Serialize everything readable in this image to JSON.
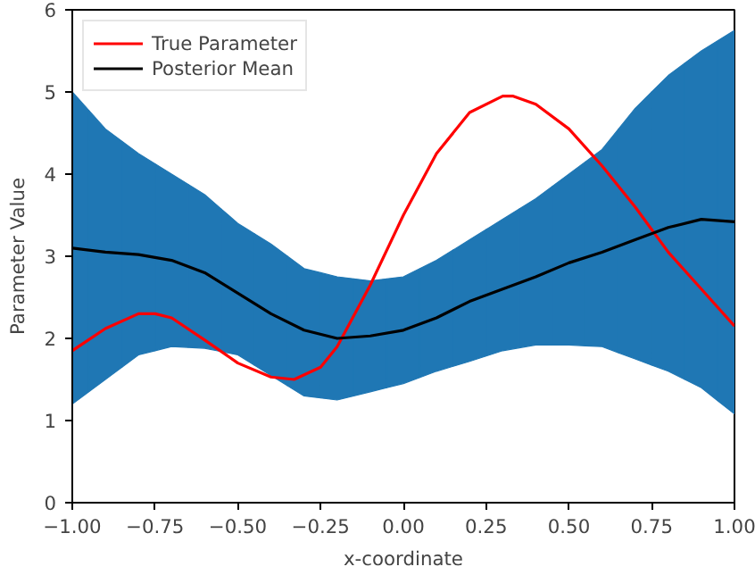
{
  "chart_data": {
    "type": "line",
    "xlabel": "x-coordinate",
    "ylabel": "Parameter Value",
    "xlim": [
      -1,
      1
    ],
    "ylim": [
      0,
      6
    ],
    "xticks": [
      {
        "value": -1,
        "label": "−1.00"
      },
      {
        "value": -0.75,
        "label": "−0.75"
      },
      {
        "value": -0.5,
        "label": "−0.50"
      },
      {
        "value": -0.25,
        "label": "−0.25"
      },
      {
        "value": 0,
        "label": "0.00"
      },
      {
        "value": 0.25,
        "label": "0.25"
      },
      {
        "value": 0.5,
        "label": "0.50"
      },
      {
        "value": 0.75,
        "label": "0.75"
      },
      {
        "value": 1,
        "label": "1.00"
      }
    ],
    "yticks": [
      0,
      1,
      2,
      3,
      4,
      5,
      6
    ],
    "grid": false,
    "legend": "top left",
    "line_style": "solid",
    "marker": "none",
    "series": [
      {
        "name": "True Parameter",
        "color": "#ff0000",
        "x": [
          -1,
          -0.9,
          -0.8,
          -0.75,
          -0.7,
          -0.6,
          -0.5,
          -0.4,
          -0.33,
          -0.25,
          -0.2,
          -0.1,
          0,
          0.1,
          0.2,
          0.3,
          0.33,
          0.4,
          0.5,
          0.6,
          0.7,
          0.8,
          0.9,
          1
        ],
        "values": [
          1.85,
          2.12,
          2.3,
          2.3,
          2.25,
          1.98,
          1.7,
          1.53,
          1.5,
          1.65,
          1.9,
          2.65,
          3.5,
          4.25,
          4.75,
          4.95,
          4.95,
          4.85,
          4.55,
          4.1,
          3.6,
          3.05,
          2.6,
          2.15
        ]
      },
      {
        "name": "Posterior Mean",
        "color": "#000000",
        "colors": [
          "#1f77b4",
          "#1f77b4",
          "#1f77b4",
          "#1f77b4",
          "#1f77b4",
          "#1f77b4",
          "#1f77b4",
          "#1f77b4",
          "#1f77b4",
          "#1f77b4",
          "#1f77b4",
          "#1f77b4",
          "#1f77b4",
          "#1f77b4",
          "#1f77b4",
          "#1f77b4",
          "#1f77b4",
          "#1f77b4",
          "#1f77b4",
          "#1f77b4",
          "#1f77b4"
        ],
        "x": [
          -1,
          -0.9,
          -0.8,
          -0.7,
          -0.6,
          -0.5,
          -0.4,
          -0.3,
          -0.2,
          -0.1,
          0,
          0.1,
          0.2,
          0.3,
          0.4,
          0.5,
          0.6,
          0.7,
          0.8,
          0.9,
          1
        ],
        "values": [
          3.1,
          3.05,
          3.02,
          2.95,
          2.8,
          2.55,
          2.3,
          2.1,
          2.0,
          2.03,
          2.1,
          2.25,
          2.45,
          2.6,
          2.75,
          2.92,
          3.05,
          3.2,
          3.35,
          3.45,
          3.42
        ],
        "lower": [
          1.2,
          1.5,
          1.8,
          1.9,
          1.88,
          1.8,
          1.55,
          1.3,
          1.25,
          1.35,
          1.45,
          1.6,
          1.72,
          1.85,
          1.92,
          1.92,
          1.9,
          1.75,
          1.6,
          1.4,
          1.08
        ],
        "upper": [
          5.0,
          4.55,
          4.25,
          4.0,
          3.75,
          3.4,
          3.15,
          2.85,
          2.75,
          2.7,
          2.75,
          2.95,
          3.2,
          3.45,
          3.7,
          4.0,
          4.3,
          4.8,
          5.2,
          5.5,
          5.75
        ]
      }
    ]
  }
}
